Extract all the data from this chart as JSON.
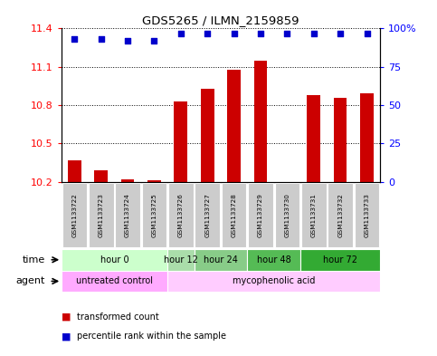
{
  "title": "GDS5265 / ILMN_2159859",
  "samples": [
    "GSM1133722",
    "GSM1133723",
    "GSM1133724",
    "GSM1133725",
    "GSM1133726",
    "GSM1133727",
    "GSM1133728",
    "GSM1133729",
    "GSM1133730",
    "GSM1133731",
    "GSM1133732",
    "GSM1133733"
  ],
  "bar_values": [
    10.37,
    10.29,
    10.22,
    10.21,
    10.83,
    10.93,
    11.08,
    11.15,
    10.2,
    10.88,
    10.86,
    10.89
  ],
  "percentile_values": [
    93,
    93,
    92,
    92,
    97,
    97,
    97,
    97,
    97,
    97,
    97,
    97
  ],
  "ylim": [
    10.2,
    11.4
  ],
  "yticks_left": [
    10.2,
    10.5,
    10.8,
    11.1,
    11.4
  ],
  "yticks_right": [
    0,
    25,
    50,
    75,
    100
  ],
  "bar_color": "#cc0000",
  "dot_color": "#0000cc",
  "bar_bottom": 10.2,
  "time_groups": [
    {
      "label": "hour 0",
      "start": 0,
      "end": 4,
      "color": "#ccffcc"
    },
    {
      "label": "hour 12",
      "start": 4,
      "end": 5,
      "color": "#aaddaa"
    },
    {
      "label": "hour 24",
      "start": 5,
      "end": 7,
      "color": "#88cc88"
    },
    {
      "label": "hour 48",
      "start": 7,
      "end": 9,
      "color": "#55bb55"
    },
    {
      "label": "hour 72",
      "start": 9,
      "end": 12,
      "color": "#33aa33"
    }
  ],
  "agent_groups": [
    {
      "label": "untreated control",
      "start": 0,
      "end": 4,
      "color": "#ffaaff"
    },
    {
      "label": "mycophenolic acid",
      "start": 4,
      "end": 12,
      "color": "#ffccff"
    }
  ],
  "legend_bar_label": "transformed count",
  "legend_dot_label": "percentile rank within the sample",
  "label_time": "time",
  "label_agent": "agent",
  "background_color": "#ffffff",
  "sample_box_color": "#cccccc",
  "figsize": [
    4.83,
    3.93
  ],
  "dpi": 100
}
